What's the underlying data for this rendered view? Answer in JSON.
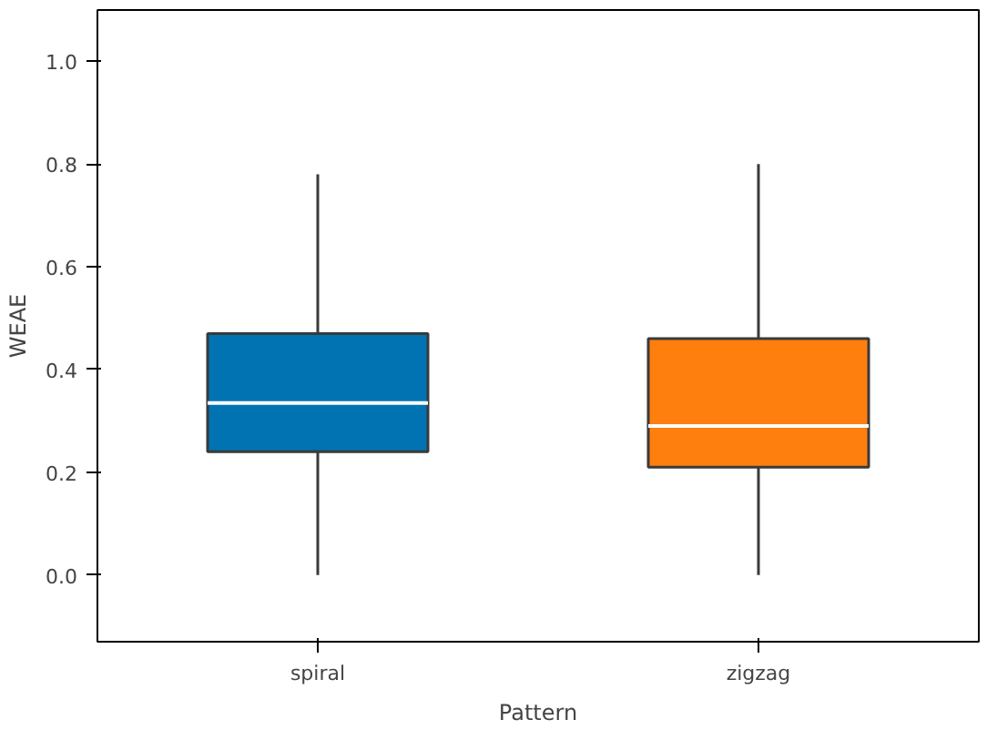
{
  "chart_data": {
    "type": "box",
    "xlabel": "Pattern",
    "ylabel": "WEAE",
    "categories": [
      "spiral",
      "zigzag"
    ],
    "series": [
      {
        "color": "#0173b2",
        "boxes": [
          {
            "low": 0.0,
            "q1": 0.24,
            "median": 0.335,
            "q3": 0.47,
            "high": 0.78
          },
          null
        ]
      },
      {
        "color": "#ff7f0e",
        "boxes": [
          null,
          {
            "low": 0.0,
            "q1": 0.21,
            "median": 0.29,
            "q3": 0.46,
            "high": 0.8
          }
        ]
      }
    ],
    "ylim": [
      -0.13,
      1.1
    ],
    "yticks": [
      {
        "value": 0.0,
        "label": "0.0"
      },
      {
        "value": 0.2,
        "label": "0.2"
      },
      {
        "value": 0.4,
        "label": "0.4"
      },
      {
        "value": 0.6,
        "label": "0.6"
      },
      {
        "value": 0.8,
        "label": "0.8"
      },
      {
        "value": 1.0,
        "label": "1.0"
      }
    ],
    "grid": false
  }
}
